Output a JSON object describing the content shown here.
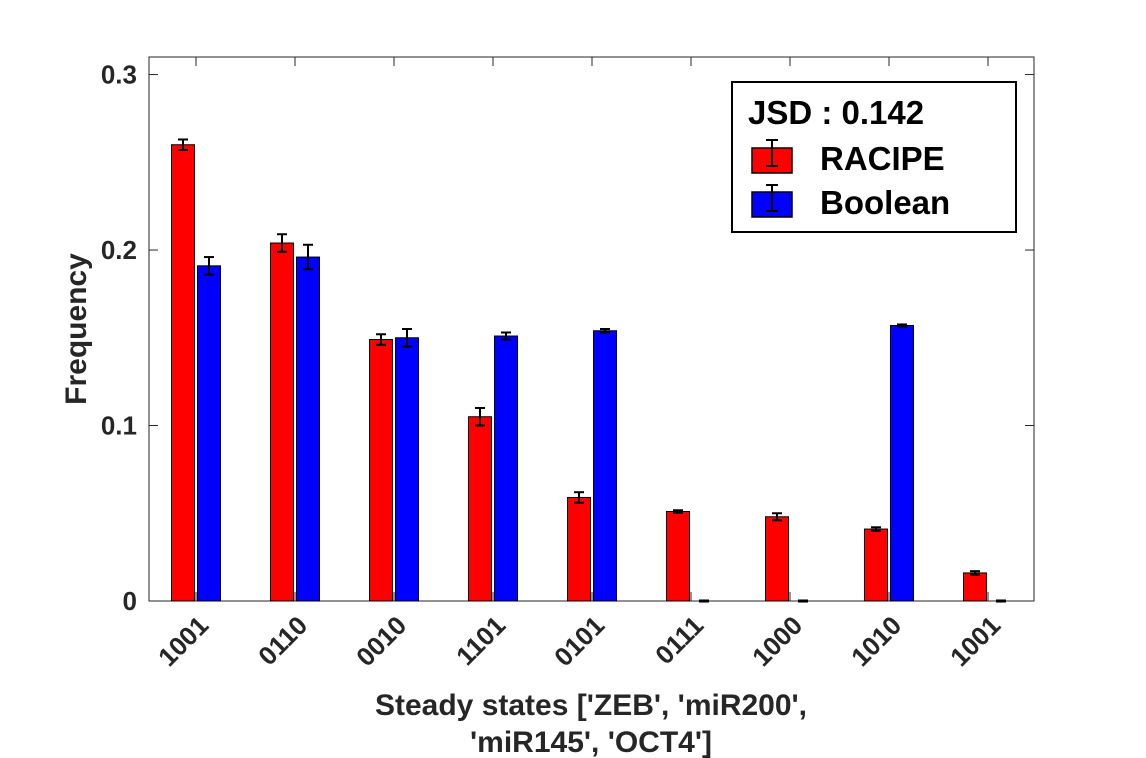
{
  "chart_data": {
    "type": "bar",
    "categories": [
      "1001",
      "0110",
      "0010",
      "1101",
      "0101",
      "0111",
      "1000",
      "1010",
      "1001"
    ],
    "series": [
      {
        "name": "RACIPE",
        "color": "#ff0000",
        "values": [
          0.26,
          0.204,
          0.149,
          0.105,
          0.059,
          0.051,
          0.048,
          0.041,
          0.016
        ],
        "errors": [
          0.003,
          0.005,
          0.003,
          0.005,
          0.003,
          0.0007,
          0.002,
          0.001,
          0.001
        ]
      },
      {
        "name": "Boolean",
        "color": "#0000ff",
        "values": [
          0.191,
          0.196,
          0.15,
          0.151,
          0.154,
          0.0,
          0.0,
          0.157,
          0.0
        ],
        "errors": [
          0.005,
          0.007,
          0.005,
          0.002,
          0.001,
          0.0003,
          0.0003,
          0.0006,
          0.0003
        ]
      }
    ],
    "ylabel": "Frequency",
    "xlabel_lines": [
      "Steady states ['ZEB', 'miR200',",
      "'miR145', 'OCT4']"
    ],
    "yticks": [
      "0",
      "0.1",
      "0.2",
      "0.3"
    ],
    "ytick_values": [
      0,
      0.1,
      0.2,
      0.3
    ],
    "ylim": [
      0,
      0.31
    ],
    "legend_title": "JSD : 0.142",
    "legend_placement": "top-right",
    "grid": false
  }
}
